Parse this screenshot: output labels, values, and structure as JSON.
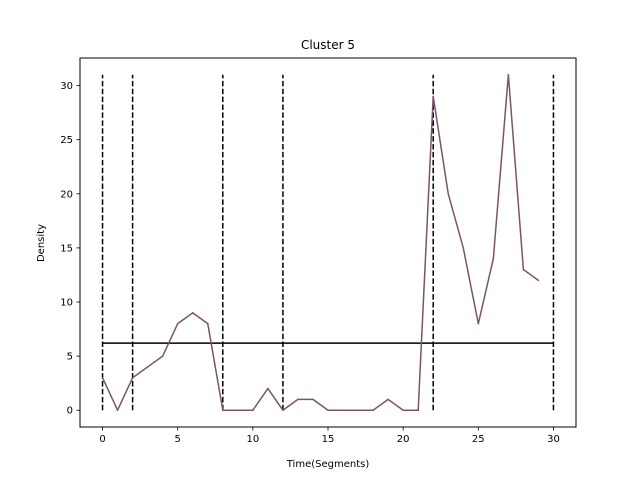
{
  "chart_data": {
    "type": "line",
    "title": "Cluster 5",
    "xlabel": "Time(Segments)",
    "ylabel": "Density",
    "xlim": [
      -1.5,
      31.5
    ],
    "ylim": [
      -1.55,
      32.55
    ],
    "xticks": [
      0,
      5,
      10,
      15,
      20,
      25,
      30
    ],
    "yticks": [
      0,
      5,
      10,
      15,
      20,
      25,
      30
    ],
    "grid": false,
    "series": [
      {
        "color": "#7a546d",
        "x": [
          0,
          1,
          2,
          3,
          4,
          5,
          6,
          7,
          8,
          9,
          10,
          11,
          12,
          13,
          14,
          15,
          16,
          17,
          18,
          19,
          20,
          21,
          22,
          23,
          24,
          25,
          26,
          27,
          28,
          29
        ],
        "y": [
          3,
          0,
          3,
          4,
          5,
          8,
          9,
          8,
          0,
          0,
          0,
          2,
          0,
          1,
          1,
          0,
          0,
          0,
          0,
          1,
          0,
          0,
          29,
          20,
          15,
          8,
          14,
          31,
          13,
          12
        ]
      }
    ],
    "mean_line": {
      "y": 6.2,
      "x_start": 0,
      "x_end": 30,
      "color": "#000000"
    },
    "segment_boundaries": {
      "x": [
        0,
        2,
        8,
        12,
        22,
        30
      ],
      "y_range": [
        0,
        31
      ],
      "color": "#000000",
      "style": "dashed"
    }
  }
}
